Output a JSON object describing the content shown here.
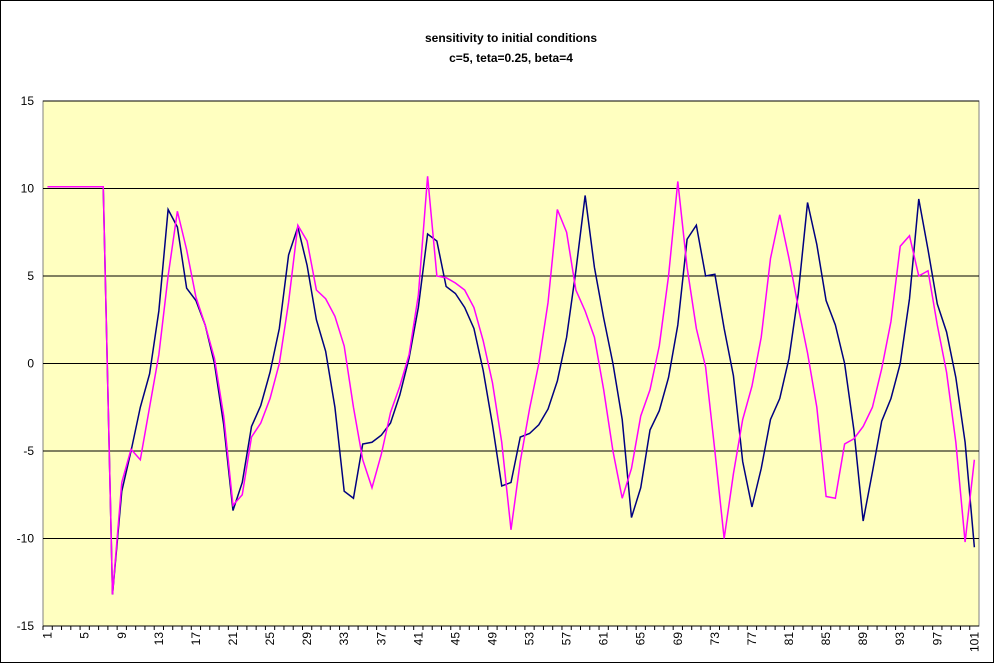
{
  "chart_data": {
    "type": "line",
    "title": "sensitivity to initial conditions",
    "subtitle": "c=5, teta=0.25, beta=4",
    "categories": [
      "1",
      null,
      null,
      null,
      "5",
      null,
      null,
      null,
      "9",
      null,
      null,
      null,
      "13",
      null,
      null,
      null,
      "17",
      null,
      null,
      null,
      "21",
      null,
      null,
      null,
      "25",
      null,
      null,
      null,
      "29",
      null,
      null,
      null,
      "33",
      null,
      null,
      null,
      "37",
      null,
      null,
      null,
      "41",
      null,
      null,
      null,
      "45",
      null,
      null,
      null,
      "49",
      null,
      null,
      null,
      "53",
      null,
      null,
      null,
      "57",
      null,
      null,
      null,
      "61",
      null,
      null,
      null,
      "65",
      null,
      null,
      null,
      "69",
      null,
      null,
      null,
      "73",
      null,
      null,
      null,
      "77",
      null,
      null,
      null,
      "81",
      null,
      null,
      null,
      "85",
      null,
      null,
      null,
      "89",
      null,
      null,
      null,
      "93",
      null,
      null,
      null,
      "97",
      null,
      null,
      null,
      "101"
    ],
    "series": [
      {
        "color": "#000080",
        "values": [
          10.1,
          10.1,
          10.1,
          10.1,
          10.1,
          10.1,
          10.1,
          -13.2,
          -7.3,
          -5,
          -2.5,
          -0.6,
          3,
          8.8,
          7.8,
          4.3,
          3.6,
          2.2,
          0,
          -3.5,
          -8.4,
          -6.8,
          -3.6,
          -2.4,
          -0.5,
          2,
          6.2,
          7.8,
          5.6,
          2.5,
          0.7,
          -2.5,
          -7.3,
          -7.7,
          -4.6,
          -4.5,
          -4.1,
          -3.4,
          -1.8,
          0.3,
          3.2,
          7.4,
          7,
          4.4,
          4,
          3.2,
          2,
          -0.4,
          -3.5,
          -7,
          -6.8,
          -4.2,
          -4,
          -3.5,
          -2.6,
          -1,
          1.5,
          5.3,
          9.6,
          5.5,
          2.6,
          0,
          -3.2,
          -8.8,
          -7.1,
          -3.8,
          -2.7,
          -0.8,
          2.2,
          7.1,
          7.9,
          5,
          5.1,
          2,
          -0.7,
          -5.6,
          -8.2,
          -6,
          -3.2,
          -2,
          0.3,
          4,
          9.2,
          6.8,
          3.6,
          2.2,
          0,
          -3.8,
          -9,
          -6.2,
          -3.3,
          -2,
          0,
          3.7,
          9.4,
          6.5,
          3.4,
          1.8,
          -0.8,
          -4.5,
          -10.5
        ]
      },
      {
        "color": "#ff00ff",
        "values": [
          10.1,
          10.1,
          10.1,
          10.1,
          10.1,
          10.1,
          10.1,
          -13.2,
          -6.8,
          -4.9,
          -5.5,
          -2.5,
          0.5,
          5,
          8.7,
          6.5,
          3.8,
          2.2,
          0.3,
          -3,
          -8.1,
          -7.5,
          -4.2,
          -3.4,
          -2,
          0,
          3.5,
          7.9,
          7,
          4.2,
          3.7,
          2.7,
          1,
          -2.5,
          -5.5,
          -7.1,
          -5.2,
          -2.8,
          -1.3,
          0.5,
          3.9,
          10.7,
          5,
          4.9,
          4.6,
          4.2,
          3.2,
          1.3,
          -1.1,
          -4.5,
          -9.5,
          -5.6,
          -2.6,
          0,
          3.5,
          8.8,
          7.5,
          4.2,
          3,
          1.5,
          -1.5,
          -5,
          -7.7,
          -6,
          -3,
          -1.5,
          1,
          5,
          10.4,
          5.5,
          2,
          -0.2,
          -5,
          -10,
          -6.3,
          -3.2,
          -1.3,
          1.5,
          6,
          8.5,
          6,
          3.2,
          0.6,
          -2.5,
          -7.6,
          -7.7,
          -4.6,
          -4.3,
          -3.6,
          -2.5,
          -0.3,
          2.4,
          6.7,
          7.3,
          5,
          5.3,
          2.2,
          -0.5,
          -4.5,
          -10.2,
          -5.5
        ]
      }
    ],
    "ylim": [
      -15,
      15
    ],
    "yticks": [
      -15,
      -10,
      -5,
      0,
      5,
      10,
      15
    ],
    "grid": true
  }
}
